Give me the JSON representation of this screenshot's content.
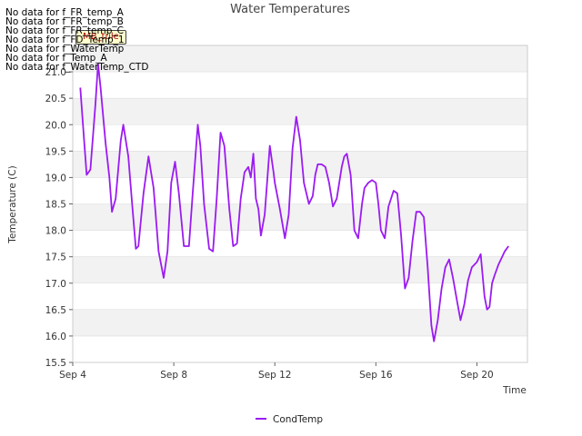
{
  "no_data_messages": [
    "No data for f_FR_temp_A",
    "No data for f_FR_temp_B",
    "No data for f_FR_temp_C",
    "No data for f_FD_Temp_1",
    "No data for f_WaterTemp",
    "No data for f_Temp_A",
    "No data for f_WaterTemp_CTD"
  ],
  "tooltip_label": "MB_tule",
  "colors": {
    "series": "#9b1bf2",
    "band": "#f2f2f2",
    "grid": "#dddddd"
  },
  "chart_data": {
    "type": "line",
    "title": "Water Temperatures",
    "xlabel": "Time",
    "ylabel": "Temperature (C)",
    "xlim": [
      4.0,
      22.0
    ],
    "ylim": [
      15.5,
      21.5
    ],
    "yticks": [
      15.5,
      16.0,
      16.5,
      17.0,
      17.5,
      18.0,
      18.5,
      19.0,
      19.5,
      20.0,
      20.5,
      21.0
    ],
    "ytick_labels": [
      "15.5",
      "16.0",
      "16.5",
      "17.0",
      "17.5",
      "18.0",
      "18.5",
      "19.0",
      "19.5",
      "20.0",
      "20.5",
      "21.0"
    ],
    "xticks": [
      4,
      8,
      12,
      16,
      20
    ],
    "xtick_labels": [
      "Sep 4",
      "Sep 8",
      "Sep 12",
      "Sep 16",
      "Sep 20"
    ],
    "grid": true,
    "legend_position": "bottom-center",
    "series": [
      {
        "name": "CondTemp",
        "x": [
          4.3,
          4.45,
          4.55,
          4.7,
          4.9,
          5.0,
          5.1,
          5.3,
          5.45,
          5.55,
          5.7,
          5.9,
          6.0,
          6.2,
          6.35,
          6.5,
          6.6,
          6.8,
          7.0,
          7.2,
          7.4,
          7.6,
          7.75,
          7.9,
          8.05,
          8.2,
          8.4,
          8.6,
          8.75,
          8.95,
          9.05,
          9.2,
          9.4,
          9.55,
          9.7,
          9.85,
          10.0,
          10.2,
          10.35,
          10.5,
          10.65,
          10.8,
          10.95,
          11.05,
          11.15,
          11.25,
          11.35,
          11.45,
          11.6,
          11.8,
          11.95,
          12.0,
          12.2,
          12.4,
          12.55,
          12.7,
          12.85,
          13.0,
          13.15,
          13.35,
          13.5,
          13.6,
          13.7,
          13.85,
          14.0,
          14.15,
          14.3,
          14.45,
          14.65,
          14.75,
          14.85,
          15.0,
          15.15,
          15.3,
          15.45,
          15.55,
          15.7,
          15.85,
          16.0,
          16.1,
          16.2,
          16.35,
          16.5,
          16.7,
          16.85,
          17.0,
          17.15,
          17.3,
          17.45,
          17.6,
          17.75,
          17.9,
          18.05,
          18.2,
          18.3,
          18.45,
          18.6,
          18.75,
          18.9,
          19.05,
          19.2,
          19.35,
          19.5,
          19.65,
          19.8,
          19.9,
          20.0,
          20.15,
          20.3,
          20.4,
          20.5,
          20.6,
          20.7,
          20.85,
          21.0,
          21.1,
          21.25
        ],
        "y": [
          20.7,
          19.7,
          19.05,
          19.15,
          20.4,
          21.15,
          20.7,
          19.65,
          19.0,
          18.35,
          18.6,
          19.7,
          20.0,
          19.4,
          18.5,
          17.65,
          17.7,
          18.7,
          19.4,
          18.8,
          17.6,
          17.1,
          17.6,
          18.9,
          19.3,
          18.7,
          17.7,
          17.7,
          18.7,
          20.0,
          19.6,
          18.5,
          17.65,
          17.6,
          18.6,
          19.85,
          19.6,
          18.4,
          17.7,
          17.75,
          18.6,
          19.1,
          19.2,
          19.0,
          19.45,
          18.6,
          18.4,
          17.9,
          18.3,
          19.6,
          19.1,
          18.9,
          18.4,
          17.85,
          18.3,
          19.55,
          20.15,
          19.7,
          18.9,
          18.5,
          18.65,
          19.05,
          19.25,
          19.25,
          19.2,
          18.9,
          18.45,
          18.6,
          19.2,
          19.4,
          19.45,
          19.05,
          18.0,
          17.85,
          18.5,
          18.8,
          18.9,
          18.95,
          18.9,
          18.5,
          18.0,
          17.85,
          18.45,
          18.75,
          18.7,
          17.9,
          16.9,
          17.1,
          17.8,
          18.35,
          18.35,
          18.25,
          17.3,
          16.2,
          15.9,
          16.3,
          16.9,
          17.3,
          17.45,
          17.1,
          16.7,
          16.3,
          16.6,
          17.05,
          17.3,
          17.35,
          17.4,
          17.55,
          16.75,
          16.5,
          16.55,
          17.0,
          17.15,
          17.35,
          17.5,
          17.6,
          17.7
        ]
      }
    ]
  }
}
